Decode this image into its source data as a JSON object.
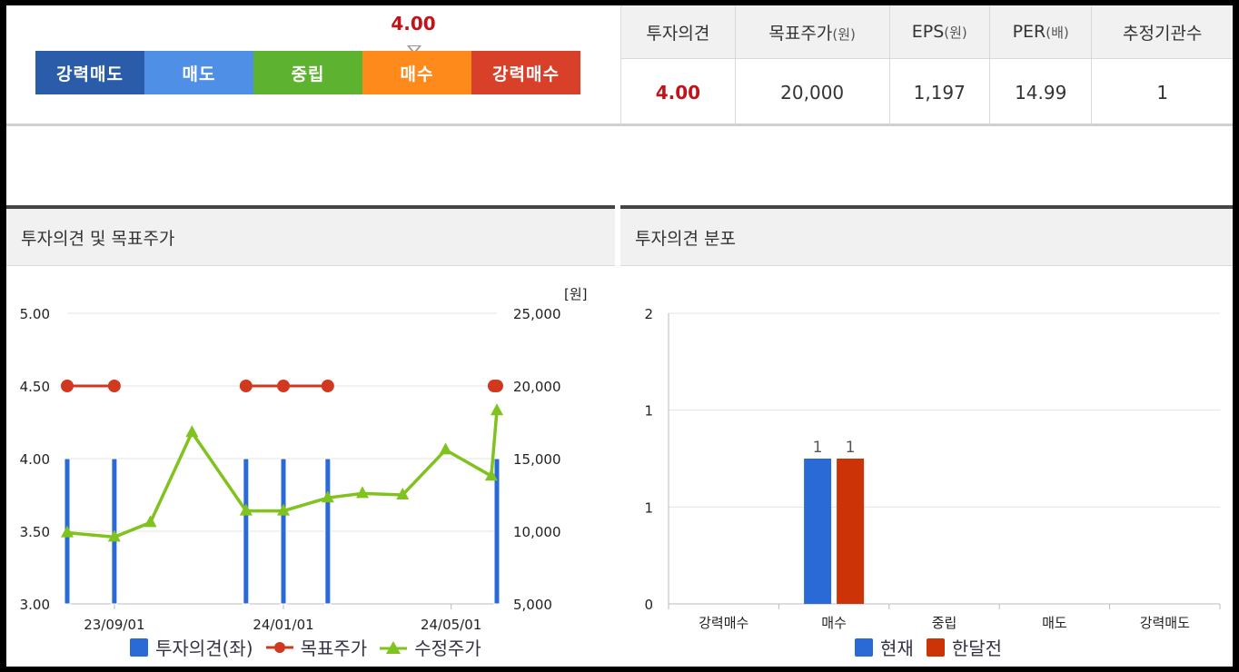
{
  "summary": {
    "gauge": {
      "value": "4.00",
      "level": 4.0,
      "segments": [
        {
          "label": "강력매도",
          "color": "#2a5caa"
        },
        {
          "label": "매도",
          "color": "#4f8fe6"
        },
        {
          "label": "중립",
          "color": "#5db22f"
        },
        {
          "label": "매수",
          "color": "#ff8a1c"
        },
        {
          "label": "강력매수",
          "color": "#d8402a"
        }
      ]
    },
    "table": {
      "headers": [
        {
          "main": "투자의견",
          "unit": ""
        },
        {
          "main": "목표주가",
          "unit": "(원)"
        },
        {
          "main": "EPS",
          "unit": "(원)"
        },
        {
          "main": "PER",
          "unit": "(배)"
        },
        {
          "main": "추정기관수",
          "unit": ""
        }
      ],
      "values": [
        "4.00",
        "20,000",
        "1,197",
        "14.99",
        "1"
      ]
    }
  },
  "panels": {
    "left_title": "투자의견 및 목표주가",
    "right_title": "투자의견 분포"
  },
  "chart_data": [
    {
      "type": "bar",
      "title": "투자의견 및 목표주가",
      "x_tick_labels": [
        "23/09/01",
        "24/01/01",
        "24/05/01"
      ],
      "y_left": {
        "ticks": [
          "5.00",
          "4.50",
          "4.00",
          "3.50",
          "3.00"
        ],
        "range": [
          3.0,
          5.0
        ]
      },
      "y_right": {
        "unit": "[원]",
        "ticks": [
          "25,000",
          "20,000",
          "15,000",
          "10,000",
          "5,000"
        ],
        "range": [
          5000,
          25000
        ]
      },
      "series": [
        {
          "name": "투자의견(좌)",
          "kind": "bar",
          "color": "#2a6ad6",
          "points": [
            [
              "2023-07-29",
              4.0
            ],
            [
              "2023-09-01",
              4.0
            ],
            [
              "2023-12-05",
              4.0
            ],
            [
              "2024-01-01",
              4.0
            ],
            [
              "2024-02-02",
              4.0
            ],
            [
              "2024-06-03",
              4.0
            ]
          ]
        },
        {
          "name": "목표주가",
          "kind": "line",
          "color": "#d0391f",
          "points": [
            [
              "2023-07-29",
              20000
            ],
            [
              "2023-09-01",
              20000
            ],
            [
              "2023-12-05",
              20000
            ],
            [
              "2024-01-01",
              20000
            ],
            [
              "2024-02-02",
              20000
            ],
            [
              "2024-06-01",
              20000
            ],
            [
              "2024-06-03",
              20000
            ]
          ]
        },
        {
          "name": "수정주가",
          "kind": "line",
          "color": "#80c21e",
          "points": [
            [
              "2023-07-29",
              9900
            ],
            [
              "2023-09-01",
              9600
            ],
            [
              "2023-09-27",
              10600
            ],
            [
              "2023-10-27",
              16800
            ],
            [
              "2023-12-05",
              11400
            ],
            [
              "2024-01-01",
              11400
            ],
            [
              "2024-02-02",
              12300
            ],
            [
              "2024-02-27",
              12600
            ],
            [
              "2024-03-27",
              12500
            ],
            [
              "2024-04-27",
              15600
            ],
            [
              "2024-05-30",
              13800
            ],
            [
              "2024-06-03",
              18300
            ]
          ]
        }
      ]
    },
    {
      "type": "bar",
      "title": "투자의견 분포",
      "categories": [
        "강력매수",
        "매수",
        "중립",
        "매도",
        "강력매도"
      ],
      "y_ticks": [
        "2",
        "1",
        "1",
        "0"
      ],
      "ylim": [
        0,
        2
      ],
      "series": [
        {
          "name": "현재",
          "color": "#2a6ad6",
          "values": [
            0,
            1,
            0,
            0,
            0
          ],
          "labels": [
            "",
            "1",
            "",
            "",
            ""
          ]
        },
        {
          "name": "한달전",
          "color": "#cc3306",
          "values": [
            0,
            1,
            0,
            0,
            0
          ],
          "labels": [
            "",
            "1",
            "",
            "",
            ""
          ]
        }
      ]
    }
  ]
}
